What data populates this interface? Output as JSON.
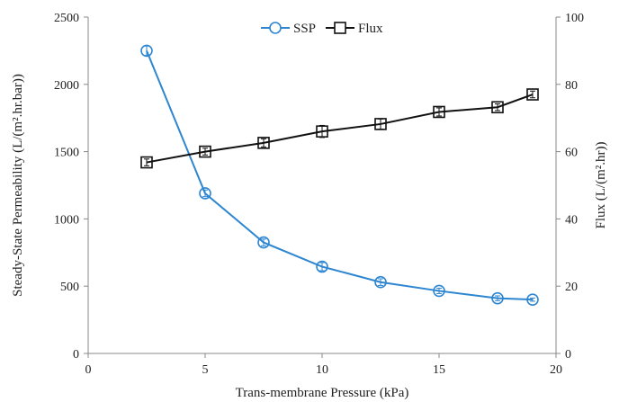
{
  "chart_data": {
    "type": "line",
    "xlabel": "Trans-membrane Pressure (kPa)",
    "ylabel_left": "Steady-State Permeability (L/(m².hr.bar))",
    "ylabel_right": "Flux  (L/(m².hr))",
    "xlim": [
      0,
      20
    ],
    "ylim_left": [
      0,
      2500
    ],
    "ylim_right": [
      0,
      100
    ],
    "x_ticks": [
      "0",
      "5",
      "10",
      "15",
      "20"
    ],
    "y_left_ticks": [
      "0",
      "500",
      "1000",
      "1500",
      "2000",
      "2500"
    ],
    "y_right_ticks": [
      "0",
      "20",
      "40",
      "60",
      "80",
      "100"
    ],
    "grid": false,
    "legend_position": "top-center",
    "series": [
      {
        "name": "SSP",
        "axis": "left",
        "marker": "circle",
        "color": "#2e86d1",
        "x": [
          2.5,
          5,
          7.5,
          10,
          12.5,
          15,
          17.5,
          19
        ],
        "y": [
          2250,
          1190,
          825,
          645,
          530,
          465,
          410,
          400
        ],
        "error": [
          35,
          25,
          25,
          30,
          25,
          20,
          18,
          12
        ]
      },
      {
        "name": "Flux",
        "axis": "right",
        "marker": "square",
        "color": "#111111",
        "x": [
          2.5,
          5,
          7.5,
          10,
          12.5,
          15,
          17.5,
          19
        ],
        "y": [
          56.8,
          60,
          62.6,
          66,
          68.2,
          71.8,
          73.2,
          77
        ],
        "error": [
          1.0,
          1.0,
          1.2,
          1.8,
          1.5,
          1.2,
          1.0,
          1.0
        ]
      }
    ]
  }
}
